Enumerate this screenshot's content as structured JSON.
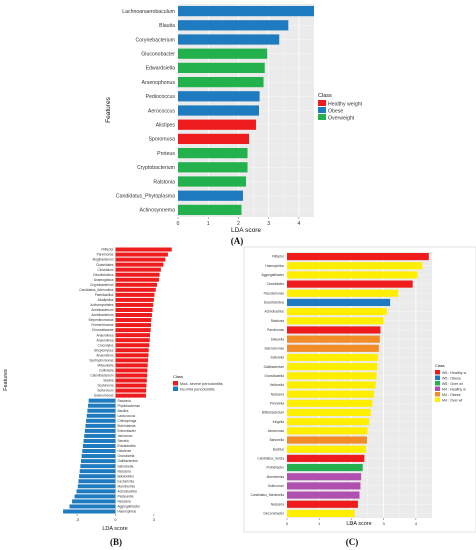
{
  "chart_data": [
    {
      "type": "bar",
      "orientation": "horizontal",
      "panel_label": "(A)",
      "xlabel": "LDA score",
      "ylabel": "Features",
      "xlim": [
        0,
        4.5
      ],
      "xticks": [
        "0",
        "1",
        "2",
        "3",
        "4"
      ],
      "grid": true,
      "legend_position": "right",
      "legend": {
        "title": "Class",
        "entries": [
          {
            "name": "Healthy weight",
            "color": "#ee1c1c"
          },
          {
            "name": "Obese",
            "color": "#1f7bbf"
          },
          {
            "name": "Overweight",
            "color": "#22b14c"
          }
        ]
      },
      "bars": [
        {
          "label": "Lachnoanaerobaculum",
          "value": 4.5,
          "class": 1
        },
        {
          "label": "Blautia",
          "value": 3.65,
          "class": 1
        },
        {
          "label": "Corynebacterium",
          "value": 3.35,
          "class": 1
        },
        {
          "label": "Gluconobacter",
          "value": 2.95,
          "class": 2
        },
        {
          "label": "Edwardsiella",
          "value": 2.87,
          "class": 2
        },
        {
          "label": "Arsenophonus",
          "value": 2.83,
          "class": 2
        },
        {
          "label": "Pediococcus",
          "value": 2.7,
          "class": 1
        },
        {
          "label": "Aerococcus",
          "value": 2.68,
          "class": 1
        },
        {
          "label": "Alistipes",
          "value": 2.58,
          "class": 0
        },
        {
          "label": "Sporomusa",
          "value": 2.35,
          "class": 0
        },
        {
          "label": "Proteus",
          "value": 2.3,
          "class": 2
        },
        {
          "label": "Cryptobacterium",
          "value": 2.3,
          "class": 2
        },
        {
          "label": "Ralstonia",
          "value": 2.25,
          "class": 2
        },
        {
          "label": "Candidatus_Phytoplasma",
          "value": 2.15,
          "class": 1
        },
        {
          "label": "Actinosynnema",
          "value": 2.1,
          "class": 2
        }
      ]
    },
    {
      "type": "bar",
      "orientation": "diverging-horizontal",
      "panel_label": "(B)",
      "xlabel": "LDA score",
      "ylabel": "Features",
      "xlim": [
        -4.5,
        4.5
      ],
      "xticks": [
        "-3",
        "0",
        "3"
      ],
      "xtick_values": [
        -3,
        0,
        3
      ],
      "legend_position": "right",
      "legend": {
        "title": "Class",
        "entries": [
          {
            "name": "Mod- severe periodontitis",
            "color": "#ee1c1c"
          },
          {
            "name": "No-mild periodontitis",
            "color": "#1f7bbf"
          }
        ]
      },
      "bars": [
        {
          "label": "Filifactor",
          "value": 4.4,
          "class": 0
        },
        {
          "label": "Parvimonas",
          "value": 4.1,
          "class": 0
        },
        {
          "label": "Mogibacterium",
          "value": 3.9,
          "class": 0
        },
        {
          "label": "Clostridiales",
          "value": 3.75,
          "class": 0
        },
        {
          "label": "Clostridium",
          "value": 3.55,
          "class": 0
        },
        {
          "label": "Desulfobulbus",
          "value": 3.45,
          "class": 0
        },
        {
          "label": "Anaeroglobus",
          "value": 3.4,
          "class": 0
        },
        {
          "label": "Cryptobacterium",
          "value": 3.25,
          "class": 0
        },
        {
          "label": "Candidatus_Arthromitus",
          "value": 3.15,
          "class": 0
        },
        {
          "label": "Paenibacillus",
          "value": 3.05,
          "class": 0
        },
        {
          "label": "Alkaliphilus",
          "value": 3.0,
          "class": 0
        },
        {
          "label": "Actinomycetales",
          "value": 2.95,
          "class": 0
        },
        {
          "label": "Acetobacterium",
          "value": 2.9,
          "class": 0
        },
        {
          "label": "Acetobacterium",
          "value": 2.85,
          "class": 0
        },
        {
          "label": "Serpentinomonas",
          "value": 2.8,
          "class": 0
        },
        {
          "label": "Fermentimonas",
          "value": 2.78,
          "class": 0
        },
        {
          "label": "Chromatiaceae",
          "value": 2.75,
          "class": 0
        },
        {
          "label": "Anaerolinea",
          "value": 2.7,
          "class": 0
        },
        {
          "label": "Anaerolinea",
          "value": 2.68,
          "class": 0
        },
        {
          "label": "Crocodylus",
          "value": 2.65,
          "class": 0
        },
        {
          "label": "Streptomyces",
          "value": 2.6,
          "class": 0
        },
        {
          "label": "Anaerobium",
          "value": 2.58,
          "class": 0
        },
        {
          "label": "Syntrophomonas",
          "value": 2.55,
          "class": 0
        },
        {
          "label": "Mitsuokella",
          "value": 2.52,
          "class": 0
        },
        {
          "label": "Collinsella",
          "value": 2.5,
          "class": 0
        },
        {
          "label": "Catenibacterium",
          "value": 2.48,
          "class": 0
        },
        {
          "label": "Slackia",
          "value": 2.45,
          "class": 0
        },
        {
          "label": "Scytonema",
          "value": 2.42,
          "class": 0
        },
        {
          "label": "Sulfurovum",
          "value": 2.4,
          "class": 0
        },
        {
          "label": "Selenomonas",
          "value": 2.38,
          "class": 0
        },
        {
          "label": "Ralstonia",
          "value": -2.1,
          "class": 1
        },
        {
          "label": "Phyllobacterium",
          "value": -2.15,
          "class": 1
        },
        {
          "label": "Bacillus",
          "value": -2.2,
          "class": 1
        },
        {
          "label": "Lactococcus",
          "value": -2.25,
          "class": 1
        },
        {
          "label": "Chitinophaga",
          "value": -2.3,
          "class": 1
        },
        {
          "label": "Burkholderia",
          "value": -2.35,
          "class": 1
        },
        {
          "label": "Enterobacter",
          "value": -2.4,
          "class": 1
        },
        {
          "label": "Variovorax",
          "value": -2.45,
          "class": 1
        },
        {
          "label": "Serratia",
          "value": -2.5,
          "class": 1
        },
        {
          "label": "Edwardsiella",
          "value": -2.55,
          "class": 1
        },
        {
          "label": "Haloferax",
          "value": -2.6,
          "class": 1
        },
        {
          "label": "Granulicella",
          "value": -2.65,
          "class": 1
        },
        {
          "label": "Gallibacterium",
          "value": -2.7,
          "class": 1
        },
        {
          "label": "Salmonella",
          "value": -2.75,
          "class": 1
        },
        {
          "label": "Neisseria",
          "value": -2.8,
          "class": 1
        },
        {
          "label": "Bdellovibrio",
          "value": -2.85,
          "class": 1
        },
        {
          "label": "Escherichia",
          "value": -2.9,
          "class": 1
        },
        {
          "label": "Mannheimia",
          "value": -2.95,
          "class": 1
        },
        {
          "label": "Actinobacillus",
          "value": -3.05,
          "class": 1
        },
        {
          "label": "Pasteurella",
          "value": -3.2,
          "class": 1
        },
        {
          "label": "Neisseria",
          "value": -3.4,
          "class": 1
        },
        {
          "label": "Aggregatibacter",
          "value": -3.6,
          "class": 1
        },
        {
          "label": "Haemophilus",
          "value": -4.1,
          "class": 1
        }
      ]
    },
    {
      "type": "bar",
      "orientation": "horizontal",
      "panel_label": "(C)",
      "xlabel": "LDA score",
      "ylabel": "",
      "xlim": [
        0,
        4.5
      ],
      "xticks": [
        "0",
        "1",
        "2",
        "3",
        "4"
      ],
      "grid": true,
      "legend_position": "right",
      "legend": {
        "title": "Class",
        "entries": [
          {
            "name": "W5 : Healthy w",
            "color": "#ee1c1c"
          },
          {
            "name": "W5 : Obese",
            "color": "#1f7bbf"
          },
          {
            "name": "W5 : Over wt",
            "color": "#22b14c"
          },
          {
            "name": "M4 : Healthy w",
            "color": "#b04fb0"
          },
          {
            "name": "M4 : Obese",
            "color": "#f28c28"
          },
          {
            "name": "M4 : Over wt",
            "color": "#ffee00"
          }
        ]
      },
      "bars": [
        {
          "label": "Filifactor",
          "value": 4.4,
          "class": 0
        },
        {
          "label": "Haemophilus",
          "value": 4.2,
          "class": 5
        },
        {
          "label": "Aggregatibacter",
          "value": 4.05,
          "class": 5
        },
        {
          "label": "Clostridiales",
          "value": 3.9,
          "class": 0
        },
        {
          "label": "Pseudomonas",
          "value": 3.45,
          "class": 5
        },
        {
          "label": "Desulfobulbus",
          "value": 3.2,
          "class": 1
        },
        {
          "label": "Actinobacillus",
          "value": 3.1,
          "class": 5
        },
        {
          "label": "Ralstonia",
          "value": 3.0,
          "class": 5
        },
        {
          "label": "Parvimonas",
          "value": 2.9,
          "class": 0
        },
        {
          "label": "Eikenella",
          "value": 2.88,
          "class": 4
        },
        {
          "label": "Selenomonas",
          "value": 2.85,
          "class": 4
        },
        {
          "label": "Sutterella",
          "value": 2.82,
          "class": 5
        },
        {
          "label": "Gallibacterium",
          "value": 2.8,
          "class": 5
        },
        {
          "label": "Granulicatella",
          "value": 2.78,
          "class": 5
        },
        {
          "label": "Veillonella",
          "value": 2.75,
          "class": 5
        },
        {
          "label": "Neisseria",
          "value": 2.7,
          "class": 5
        },
        {
          "label": "Prevotella",
          "value": 2.65,
          "class": 5
        },
        {
          "label": "Bifidobacterium",
          "value": 2.6,
          "class": 5
        },
        {
          "label": "Kingella",
          "value": 2.55,
          "class": 5
        },
        {
          "label": "Aeromonas",
          "value": 2.5,
          "class": 5
        },
        {
          "label": "Bartonella",
          "value": 2.48,
          "class": 4
        },
        {
          "label": "Bacillus",
          "value": 2.45,
          "class": 5
        },
        {
          "label": "Candidatus_Sulcia",
          "value": 2.4,
          "class": 0
        },
        {
          "label": "Prolixibacter",
          "value": 2.35,
          "class": 2
        },
        {
          "label": "Mannheimia",
          "value": 2.3,
          "class": 3
        },
        {
          "label": "Sulfurovum",
          "value": 2.28,
          "class": 3
        },
        {
          "label": "Candidatus_Nardonella",
          "value": 2.25,
          "class": 3
        },
        {
          "label": "Neisseria",
          "value": 2.2,
          "class": 0
        },
        {
          "label": "Gluconobacter",
          "value": 2.1,
          "class": 5
        }
      ]
    }
  ]
}
